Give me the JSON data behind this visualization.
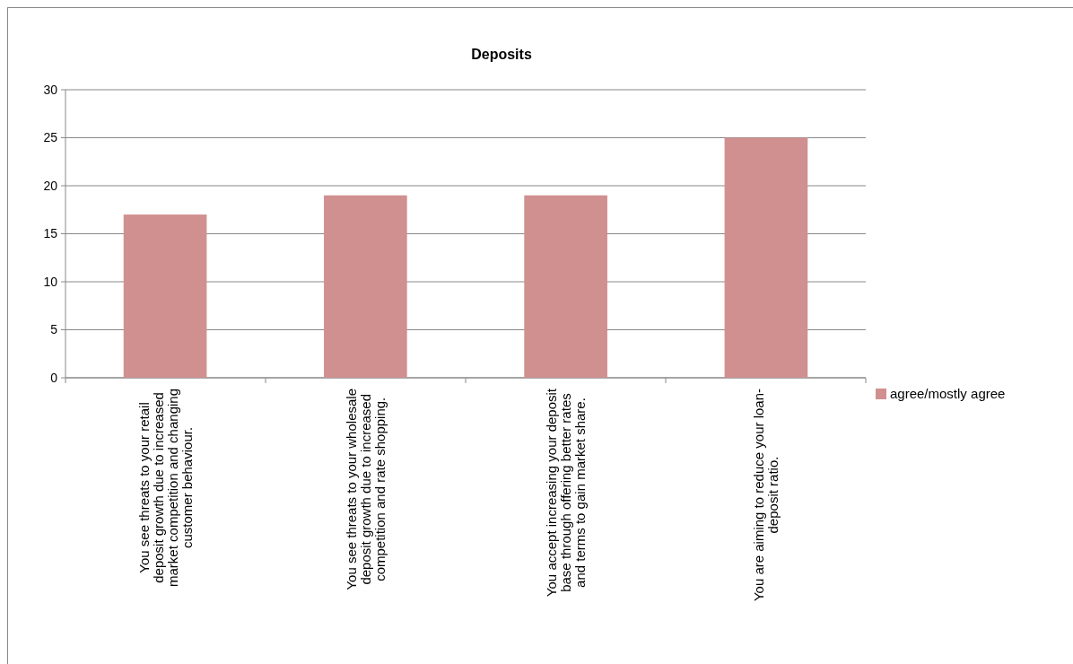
{
  "chart_data": {
    "type": "bar",
    "title": "Deposits",
    "categories": [
      "You see threats to your retail deposit growth due to increased market competition and changing customer behaviour.",
      "You see threats to your wholesale deposit growth due to increased competition and rate shopping.",
      "You accept increasing your deposit base through offering better rates and terms to gain market share.",
      "You are aiming to reduce your loan-deposit ratio."
    ],
    "series": [
      {
        "name": "agree/mostly agree",
        "color": "#d09090",
        "values": [
          17,
          19,
          19,
          25
        ]
      }
    ],
    "ylim": [
      0,
      30
    ],
    "yticks": [
      0,
      5,
      10,
      15,
      20,
      25,
      30
    ],
    "grid": "y",
    "legend": "right"
  }
}
